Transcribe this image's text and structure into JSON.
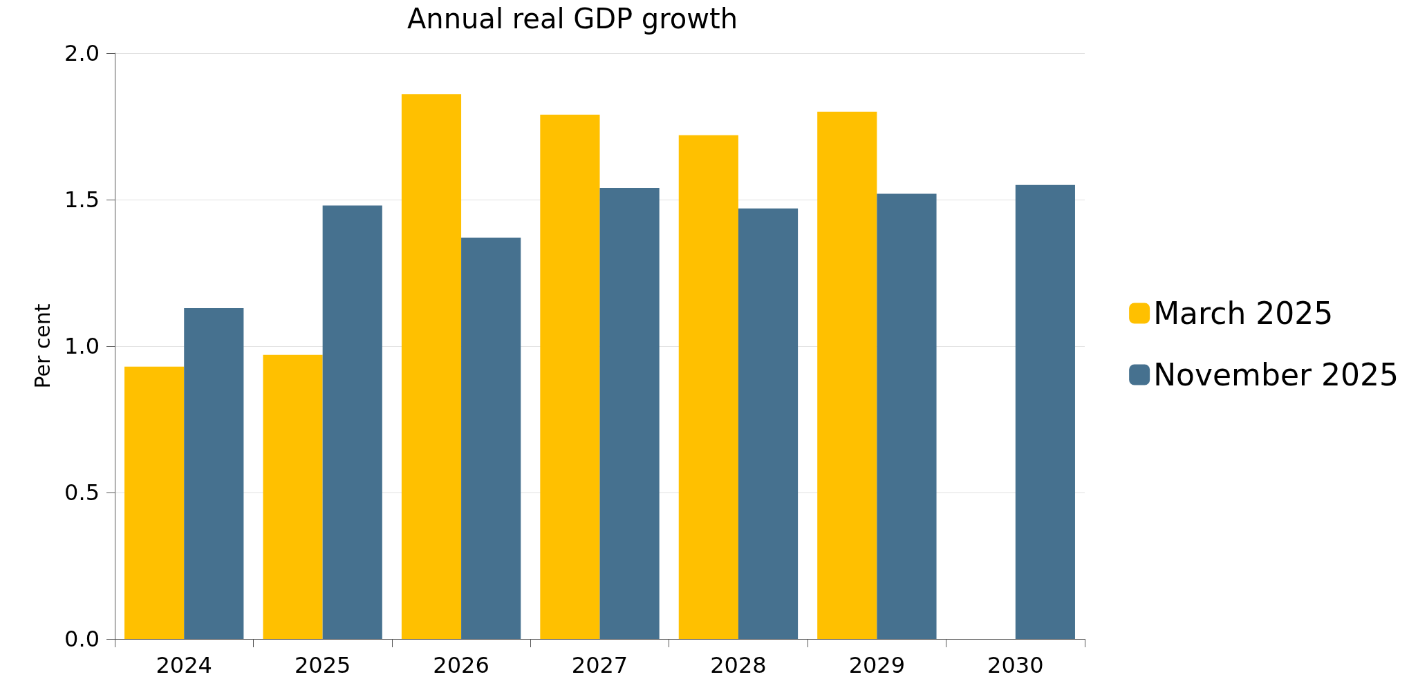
{
  "chart_data": {
    "type": "bar",
    "title": "Annual real GDP growth",
    "ylabel": "Per cent",
    "categories": [
      "2024",
      "2025",
      "2026",
      "2027",
      "2028",
      "2029",
      "2030"
    ],
    "series": [
      {
        "name": "March 2025",
        "color": "#ffc000",
        "values": [
          0.93,
          0.97,
          1.86,
          1.79,
          1.72,
          1.8,
          null
        ]
      },
      {
        "name": "November 2025",
        "color": "#46718f",
        "values": [
          1.13,
          1.48,
          1.37,
          1.54,
          1.47,
          1.52,
          1.55
        ]
      }
    ],
    "ylim": [
      0,
      2
    ],
    "yticks": [
      {
        "value": 0,
        "label": "0.0"
      },
      0.5,
      {
        "value": 1,
        "label": "1.0"
      },
      1.5,
      {
        "value": 2,
        "label": "2.0"
      }
    ],
    "grid": "y",
    "legend": "right"
  }
}
